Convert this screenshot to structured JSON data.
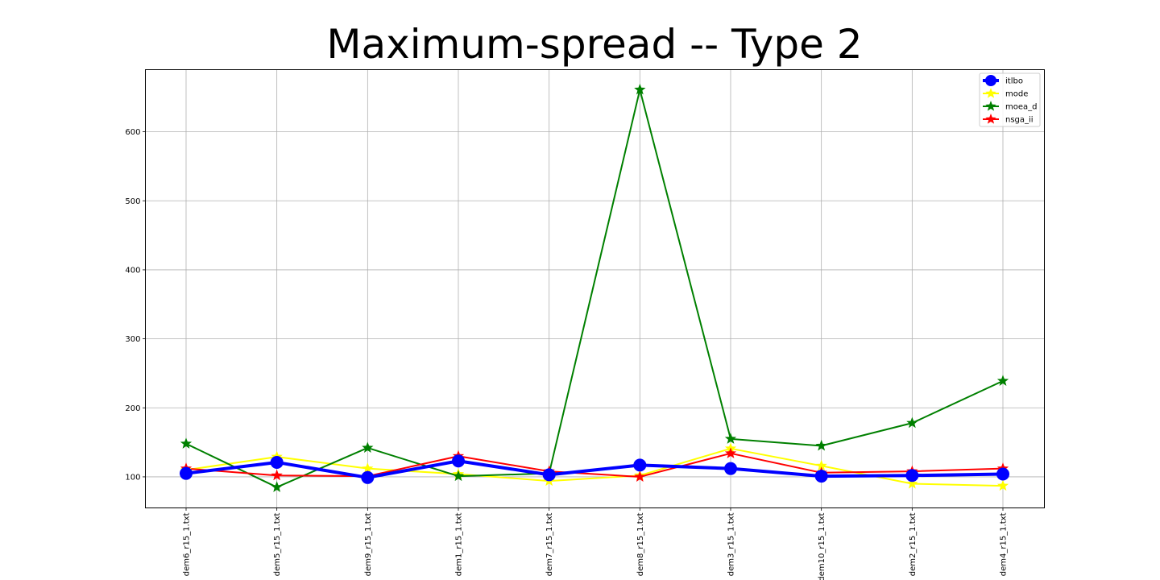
{
  "chart_data": {
    "type": "line",
    "title": "Maximum-spread -- Type 2",
    "xlabel": "",
    "ylabel": "",
    "categories": [
      "dem6_r15_1.txt",
      "dem5_r15_1.txt",
      "dem9_r15_1.txt",
      "dem1_r15_1.txt",
      "dem7_r15_1.txt",
      "dem8_r15_1.txt",
      "dem3_r15_1.txt",
      "dem10_r15_1.txt",
      "dem2_r15_1.txt",
      "dem4_r15_1.txt"
    ],
    "ylim": [
      55,
      690
    ],
    "yticks": [
      100,
      200,
      300,
      400,
      500,
      600
    ],
    "grid": true,
    "legend_position": "top-right",
    "series": [
      {
        "name": "itlbo",
        "color": "#0000ff",
        "marker": "circle",
        "values": [
          105,
          121,
          99,
          123,
          103,
          117,
          112,
          101,
          102,
          104
        ]
      },
      {
        "name": "mode",
        "color": "#ffff00",
        "marker": "star",
        "values": [
          110,
          129,
          112,
          104,
          94,
          102,
          141,
          116,
          90,
          87
        ]
      },
      {
        "name": "moea_d",
        "color": "#008000",
        "marker": "star",
        "values": [
          148,
          85,
          142,
          101,
          105,
          661,
          155,
          145,
          178,
          239
        ]
      },
      {
        "name": "nsga_ii",
        "color": "#ff0000",
        "marker": "star",
        "values": [
          112,
          102,
          101,
          130,
          108,
          100,
          134,
          106,
          108,
          112
        ]
      }
    ]
  }
}
